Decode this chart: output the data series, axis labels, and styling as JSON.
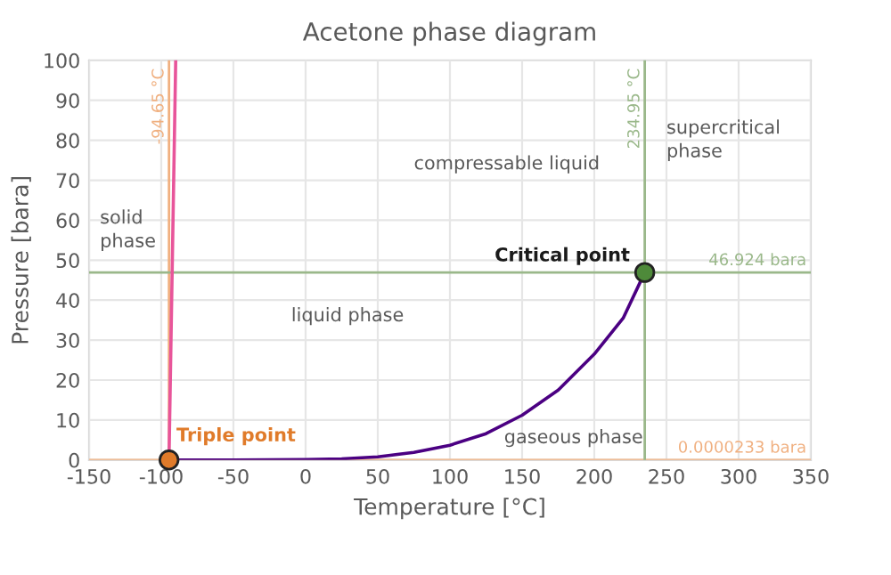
{
  "chart_data": {
    "type": "line",
    "title": "Acetone phase diagram",
    "xlabel": "Temperature [°C]",
    "ylabel": "Pressure [bara]",
    "xlim": [
      -150,
      350
    ],
    "ylim": [
      0,
      100
    ],
    "xticks": [
      {
        "value": -150,
        "label": "-150"
      },
      {
        "value": -100,
        "label": "-100"
      },
      {
        "value": -50,
        "label": "-50"
      },
      0,
      50,
      100,
      150,
      200,
      250,
      300,
      350
    ],
    "yticks": [
      0,
      10,
      20,
      30,
      40,
      50,
      60,
      70,
      80,
      90,
      100
    ],
    "grid": true,
    "legend": false,
    "series": [
      {
        "color": "#e8559a",
        "x": [
          -94.65,
          -90
        ],
        "values": [
          2.33e-05,
          100
        ]
      },
      {
        "color": "#4b0082",
        "x": [
          -94.65,
          -50,
          0,
          25,
          50,
          75,
          100,
          125,
          150,
          175,
          200,
          220,
          234.95
        ],
        "values": [
          2.33e-05,
          0,
          0.1,
          0.3,
          0.8,
          1.9,
          3.7,
          6.6,
          11.2,
          17.5,
          26.5,
          35.5,
          46.924
        ]
      },
      {
        "type": "scatter",
        "color": "#e07b2a",
        "marker": "circle",
        "x": [
          -94.65
        ],
        "values": [
          2.33e-05
        ]
      },
      {
        "type": "scatter",
        "color": "#4e8a3a",
        "marker": "circle",
        "x": [
          234.95
        ],
        "values": [
          46.924
        ]
      }
    ],
    "ref_lines": [
      {
        "axis": "x",
        "value": -94.65,
        "label": "-94.65 °C",
        "color": "#f0b080"
      },
      {
        "axis": "y",
        "value": 2.33e-05,
        "label": "0.0000233 bara",
        "color": "#f0b080"
      },
      {
        "axis": "x",
        "value": 234.95,
        "label": "234.95 °C",
        "color": "#9ab88a"
      },
      {
        "axis": "y",
        "value": 46.924,
        "label": "46.924 bara",
        "color": "#9ab88a"
      }
    ],
    "annotations": [
      {
        "text": "Triple point",
        "x": -94.65,
        "y": 2.33e-05
      },
      {
        "text": "Critical point",
        "x": 234.95,
        "y": 46.924
      },
      "compressable liquid",
      "supercritical phase",
      "solid phase",
      "liquid phase",
      "gaseous phase"
    ]
  }
}
